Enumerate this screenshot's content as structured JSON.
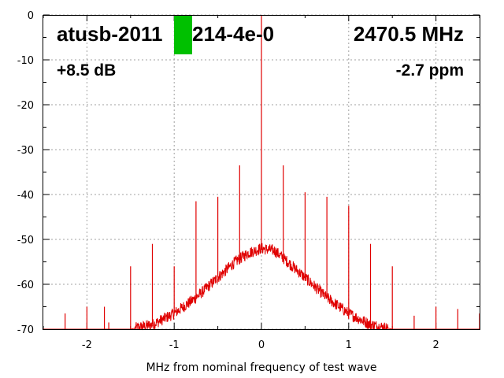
{
  "chart_data": {
    "type": "line",
    "title": "",
    "xlabel": "MHz from nominal frequency of test wave",
    "ylabel": "",
    "xlim": [
      -2.5,
      2.5
    ],
    "ylim": [
      -70,
      0
    ],
    "xticks": [
      -2,
      -1,
      0,
      1,
      2
    ],
    "yticks": [
      0,
      -10,
      -20,
      -30,
      -40,
      -50,
      -60,
      -70
    ],
    "grid": true,
    "annotations": {
      "device": "atusb-2011",
      "device_suffix": "214-4e-0",
      "frequency": "2470.5 MHz",
      "gain": "+8.5 dB",
      "offset": "-2.7 ppm"
    },
    "series": [
      {
        "color": "#e00000",
        "noise_floor": {
          "x": [
            -2.5,
            -1.5,
            -1.25,
            -1.0,
            -0.75,
            -0.5,
            -0.3,
            -0.15,
            0.0,
            0.15,
            0.3,
            0.5,
            0.75,
            1.0,
            1.25,
            1.5,
            2.5
          ],
          "y": [
            -70,
            -70,
            -69,
            -66.5,
            -63,
            -58.5,
            -55,
            -53,
            -52,
            -52.5,
            -55,
            -58.5,
            -63,
            -66.5,
            -69,
            -70,
            -70
          ]
        },
        "spurs": {
          "x": [
            -2.25,
            -2.0,
            -1.8,
            -1.75,
            -1.5,
            -1.25,
            -1.0,
            -0.75,
            -0.5,
            -0.25,
            0.0,
            0.25,
            0.5,
            0.75,
            1.0,
            1.25,
            1.5,
            1.75,
            2.0,
            2.25,
            2.5
          ],
          "y": [
            -66.5,
            -65,
            -65,
            -68.5,
            -56,
            -51,
            -56,
            -41.5,
            -40.5,
            -33.5,
            0,
            -33.5,
            -39.5,
            -40.5,
            -42.5,
            -51,
            -56,
            -67,
            -65,
            -65.5,
            -66.5
          ]
        }
      }
    ]
  }
}
